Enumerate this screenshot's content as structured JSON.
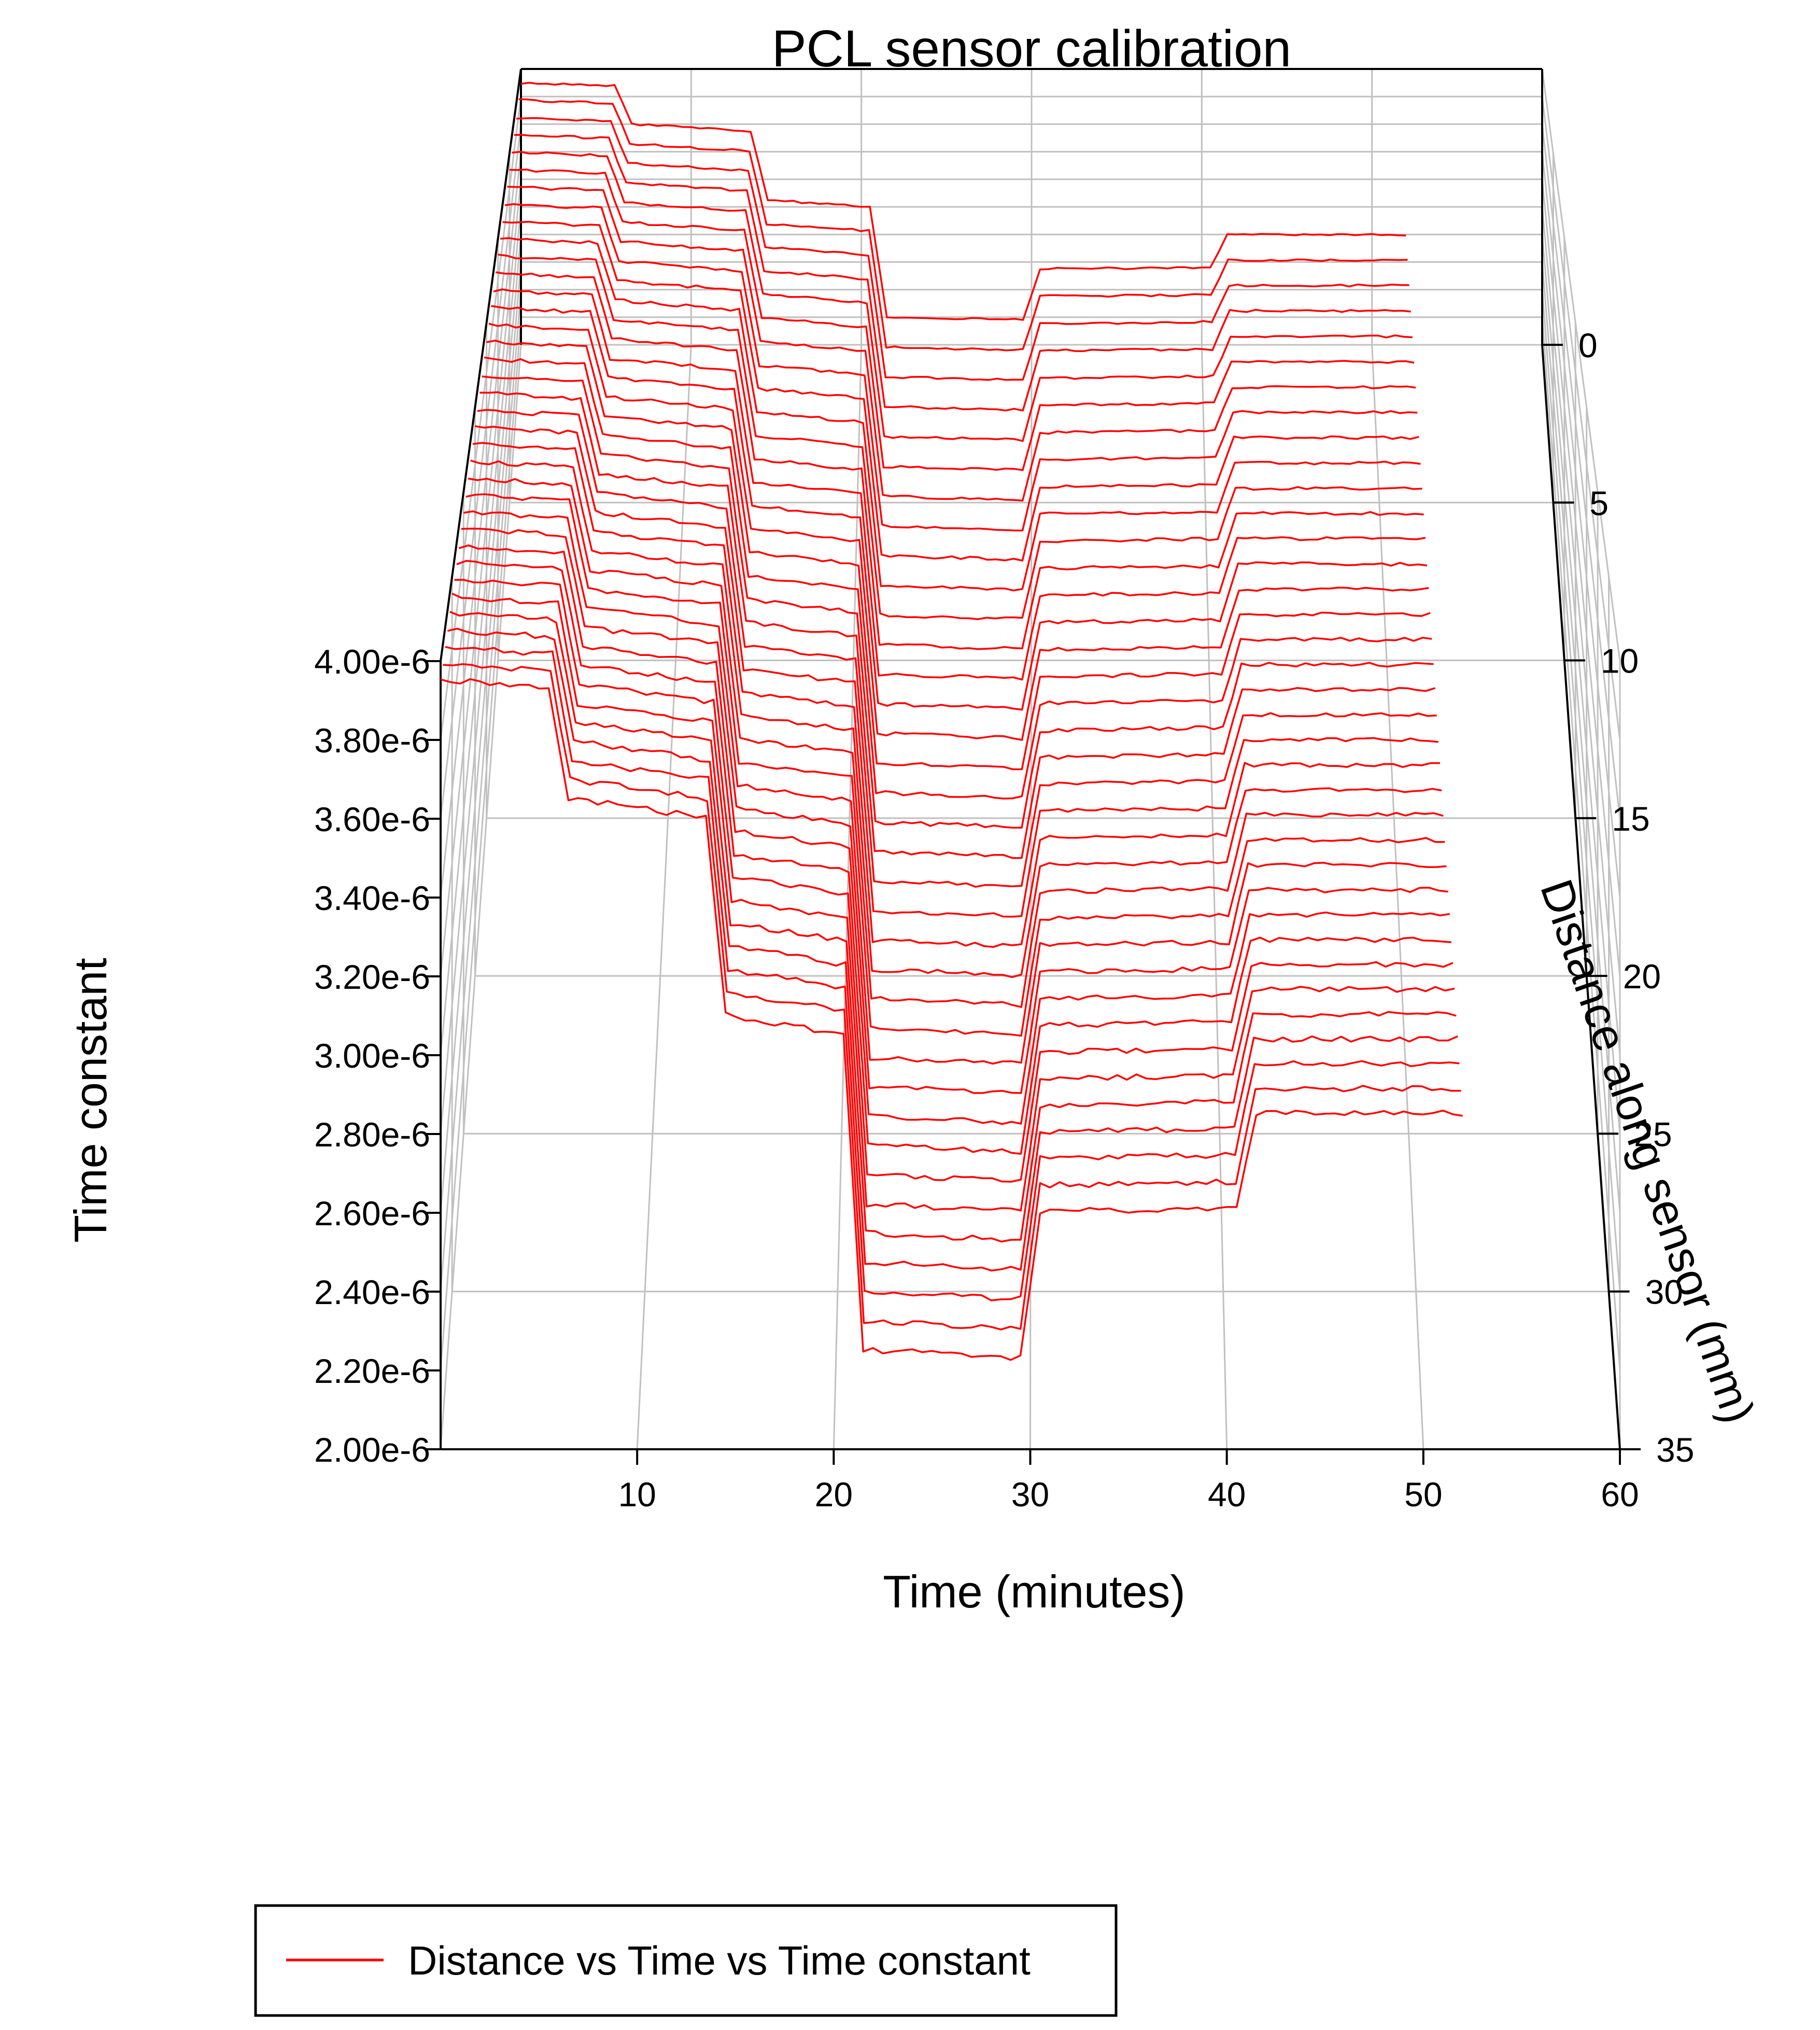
{
  "chart_data": {
    "type": "line",
    "title": "PCL sensor calibration",
    "xlabel": "Time (minutes)",
    "ylabel": "Distance along sensor (mm)",
    "zlabel": "Time constant",
    "xlim": [
      0,
      60
    ],
    "ylim": [
      0,
      35
    ],
    "zlim": [
      2e-06,
      4e-06
    ],
    "x_ticks": [
      "10",
      "20",
      "30",
      "40",
      "50",
      "60"
    ],
    "y_ticks": [
      "0",
      "5",
      "10",
      "15",
      "20",
      "25",
      "30",
      "35"
    ],
    "z_ticks": [
      "2.00e-6",
      "2.20e-6",
      "2.40e-6",
      "2.60e-6",
      "2.80e-6",
      "3.00e-6",
      "3.20e-6",
      "3.40e-6",
      "3.60e-6",
      "3.80e-6",
      "4.00e-6"
    ],
    "grid": true,
    "legend": "bottom-left",
    "series_color": "#ff0000",
    "series": [
      {
        "name": "Distance vs Time vs Time constant",
        "distances_mm": [
          0,
          1,
          2,
          3,
          4,
          5,
          6,
          7,
          8,
          9,
          10,
          11,
          12,
          13,
          14,
          15,
          16,
          17,
          18,
          19,
          20,
          21,
          22,
          23,
          24,
          25,
          26,
          27,
          28,
          29,
          30,
          31,
          32,
          33,
          34,
          35
        ],
        "time_min": [
          0,
          5.5,
          6.5,
          13.5,
          14.5,
          20.5,
          21.5,
          29.5,
          30.5,
          40.5,
          41.5,
          52
        ],
        "time_constant_profile": [
          3.9e-06,
          3.88e-06,
          3.6e-06,
          3.55e-06,
          3.05e-06,
          3e-06,
          2.2e-06,
          2.18e-06,
          2.55e-06,
          2.56e-06,
          2.8e-06,
          2.8e-06
        ]
      }
    ]
  }
}
